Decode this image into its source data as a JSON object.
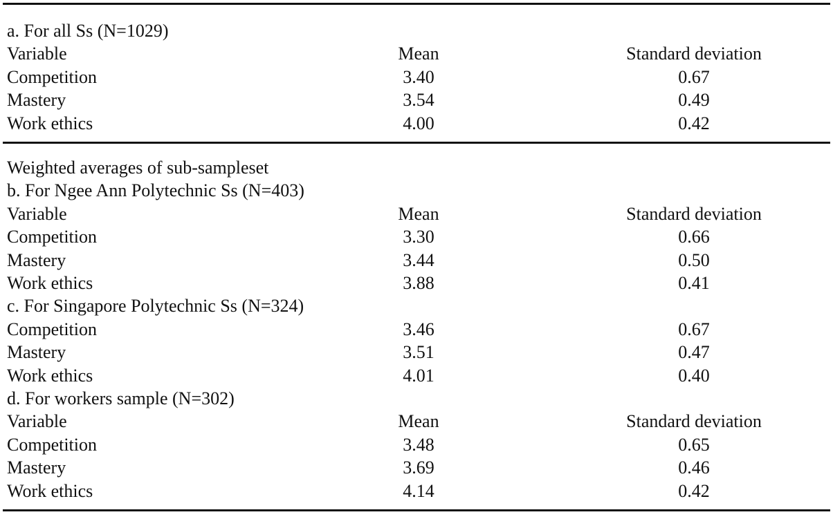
{
  "table": {
    "sections": [
      {
        "title": "a. For all Ss (N=1029)",
        "header": [
          "Variable",
          "Mean",
          "Standard deviation"
        ],
        "rows": [
          [
            "Competition",
            "3.40",
            "0.67"
          ],
          [
            "Mastery",
            "3.54",
            "0.49"
          ],
          [
            "Work ethics",
            "4.00",
            "0.42"
          ]
        ]
      },
      {
        "note": "Weighted averages of sub-sampleset",
        "title": "b. For Ngee Ann Polytechnic Ss (N=403)",
        "header": [
          "Variable",
          "Mean",
          "Standard deviation"
        ],
        "rows": [
          [
            "Competition",
            "3.30",
            "0.66"
          ],
          [
            "Mastery",
            "3.44",
            "0.50"
          ],
          [
            "Work ethics",
            "3.88",
            "0.41"
          ]
        ]
      },
      {
        "title": "c. For Singapore Polytechnic Ss (N=324)",
        "rows": [
          [
            "Competition",
            "3.46",
            "0.67"
          ],
          [
            "Mastery",
            "3.51",
            "0.47"
          ],
          [
            "Work ethics",
            "4.01",
            "0.40"
          ]
        ]
      },
      {
        "title": "d. For workers sample (N=302)",
        "header": [
          "Variable",
          "Mean",
          "Standard deviation"
        ],
        "rows": [
          [
            "Competition",
            "3.48",
            "0.65"
          ],
          [
            "Mastery",
            "3.69",
            "0.46"
          ],
          [
            "Work ethics",
            "4.14",
            "0.42"
          ]
        ]
      }
    ]
  }
}
